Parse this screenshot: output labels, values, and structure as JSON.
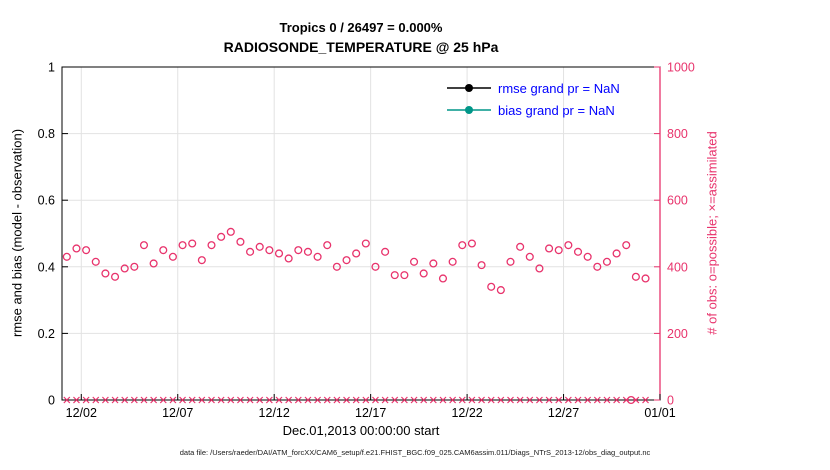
{
  "page": {
    "caption": "data file: /Users/raeder/DAI/ATM_forcXX/CAM6_setup/f.e21.FHIST_BGC.f09_025.CAM6assim.011/Diags_NTrS_2013-12/obs_diag_output.nc"
  },
  "legend": {
    "text_color": "#0000ff",
    "entries": [
      {
        "label": "rmse grand pr = NaN",
        "color": "#000000"
      },
      {
        "label": "bias grand pr = NaN",
        "color": "#009688"
      }
    ]
  },
  "chart_data": {
    "type": "scatter",
    "title": "Tropics 0 / 26497 = 0.000%",
    "subtitle": "RADIOSONDE_TEMPERATURE @ 25 hPa",
    "xlabel": "Dec.01,2013 00:00:00 start",
    "ylabel_left": "rmse and bias (model - observation)",
    "ylabel_right": "# of obs: o=possible; ×=assimilated",
    "grid": true,
    "colors": {
      "obs": "#e8336c"
    },
    "x_range_days": [
      1,
      32
    ],
    "x_ticks": [
      {
        "day": 2,
        "label": "12/02"
      },
      {
        "day": 7,
        "label": "12/07"
      },
      {
        "day": 12,
        "label": "12/12"
      },
      {
        "day": 17,
        "label": "12/17"
      },
      {
        "day": 22,
        "label": "12/22"
      },
      {
        "day": 27,
        "label": "12/27"
      },
      {
        "day": 32,
        "label": "01/01"
      }
    ],
    "y_left": {
      "min": 0,
      "max": 1,
      "ticks": [
        0,
        0.2,
        0.4,
        0.6,
        0.8,
        1
      ],
      "labels": [
        "0",
        "0.2",
        "0.4",
        "0.6",
        "0.8",
        "1"
      ]
    },
    "y_right": {
      "min": 0,
      "max": 1000,
      "ticks": [
        0,
        200,
        400,
        600,
        800,
        1000
      ],
      "labels": [
        "0",
        "200",
        "400",
        "600",
        "800",
        "1000"
      ]
    },
    "series": [
      {
        "name": "possible",
        "marker": "circle",
        "axis": "right",
        "x": [
          1.25,
          1.75,
          2.25,
          2.75,
          3.25,
          3.75,
          4.25,
          4.75,
          5.25,
          5.75,
          6.25,
          6.75,
          7.25,
          7.75,
          8.25,
          8.75,
          9.25,
          9.75,
          10.25,
          10.75,
          11.25,
          11.75,
          12.25,
          12.75,
          13.25,
          13.75,
          14.25,
          14.75,
          15.25,
          15.75,
          16.25,
          16.75,
          17.25,
          17.75,
          18.25,
          18.75,
          19.25,
          19.75,
          20.25,
          20.75,
          21.25,
          21.75,
          22.25,
          22.75,
          23.25,
          23.75,
          24.25,
          24.75,
          25.25,
          25.75,
          26.25,
          26.75,
          27.25,
          27.75,
          28.25,
          28.75,
          29.25,
          29.75,
          30.25,
          30.5,
          30.75,
          31.25
        ],
        "values": [
          430,
          455,
          450,
          415,
          380,
          370,
          395,
          400,
          465,
          410,
          450,
          430,
          465,
          470,
          420,
          465,
          490,
          505,
          475,
          445,
          460,
          450,
          440,
          425,
          450,
          445,
          430,
          465,
          400,
          420,
          440,
          470,
          400,
          445,
          375,
          375,
          415,
          380,
          410,
          365,
          415,
          465,
          470,
          405,
          340,
          330,
          415,
          460,
          430,
          395,
          455,
          450,
          465,
          445,
          430,
          400,
          415,
          440,
          465,
          0,
          370,
          365
        ]
      },
      {
        "name": "assimilated",
        "marker": "x",
        "axis": "right",
        "x": [
          1.25,
          1.75,
          2.25,
          2.75,
          3.25,
          3.75,
          4.25,
          4.75,
          5.25,
          5.75,
          6.25,
          6.75,
          7.25,
          7.75,
          8.25,
          8.75,
          9.25,
          9.75,
          10.25,
          10.75,
          11.25,
          11.75,
          12.25,
          12.75,
          13.25,
          13.75,
          14.25,
          14.75,
          15.25,
          15.75,
          16.25,
          16.75,
          17.25,
          17.75,
          18.25,
          18.75,
          19.25,
          19.75,
          20.25,
          20.75,
          21.25,
          21.75,
          22.25,
          22.75,
          23.25,
          23.75,
          24.25,
          24.75,
          25.25,
          25.75,
          26.25,
          26.75,
          27.25,
          27.75,
          28.25,
          28.75,
          29.25,
          29.75,
          30.25,
          30.75,
          31.25
        ],
        "values": [
          0,
          0,
          0,
          0,
          0,
          0,
          0,
          0,
          0,
          0,
          0,
          0,
          0,
          0,
          0,
          0,
          0,
          0,
          0,
          0,
          0,
          0,
          0,
          0,
          0,
          0,
          0,
          0,
          0,
          0,
          0,
          0,
          0,
          0,
          0,
          0,
          0,
          0,
          0,
          0,
          0,
          0,
          0,
          0,
          0,
          0,
          0,
          0,
          0,
          0,
          0,
          0,
          0,
          0,
          0,
          0,
          0,
          0,
          0,
          0,
          0
        ]
      }
    ]
  }
}
